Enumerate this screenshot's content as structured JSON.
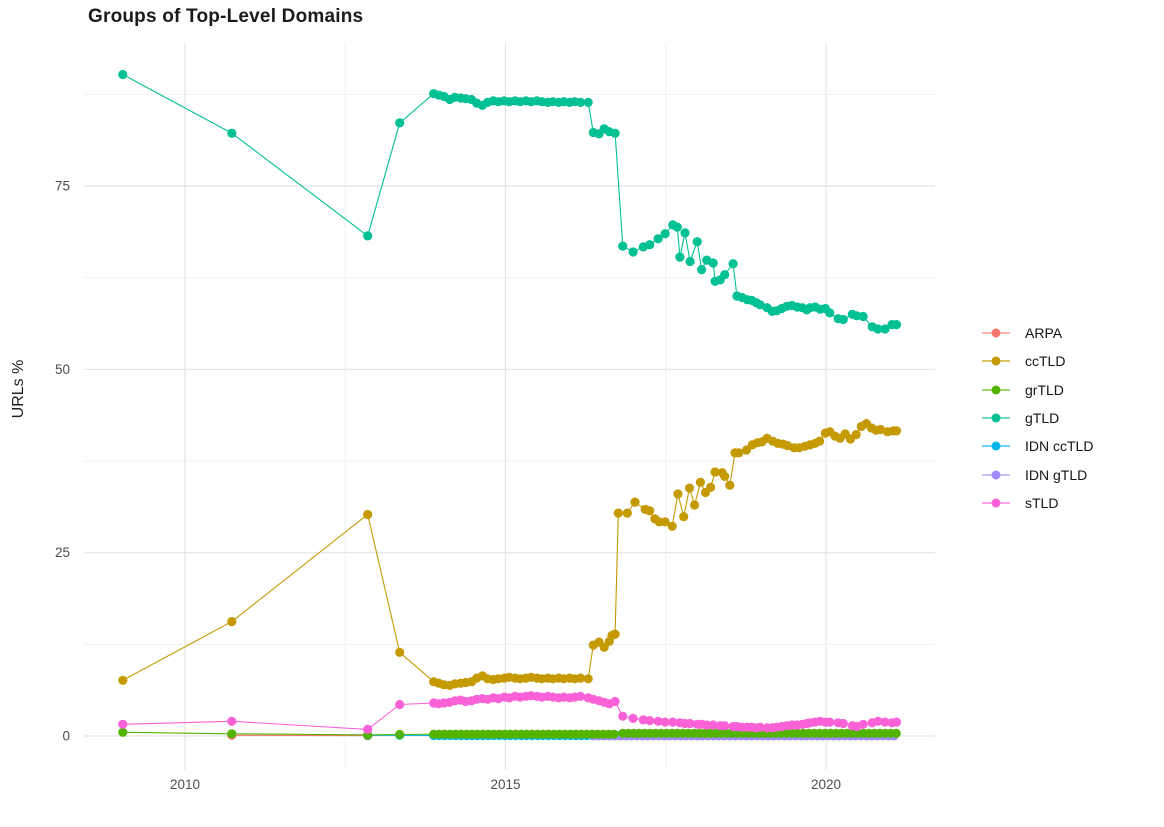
{
  "title": "Groups of Top-Level Domains",
  "chart_data": {
    "type": "line",
    "title": "Groups of Top-Level Domains",
    "xlabel": "",
    "ylabel": "URLs %",
    "x_ticks": [
      2010,
      2015,
      2020
    ],
    "x_minor_ticks": [
      2012.5,
      2017.5
    ],
    "y_ticks": [
      0,
      25,
      50,
      75
    ],
    "y_minor_ticks": [
      12.5,
      37.5,
      62.5,
      87.5
    ],
    "xlim": [
      2008.4,
      2021.7
    ],
    "ylim": [
      -4.6,
      94.6
    ],
    "grid": true,
    "legend_position": "right",
    "marker": "circle",
    "series": [
      {
        "name": "ARPA",
        "color": "#F8766D",
        "points": [
          [
            2010.73,
            0.1
          ],
          [
            2012.85,
            0.05
          ]
        ]
      },
      {
        "name": "ccTLD",
        "color": "#C49A00",
        "points": [
          [
            2009.03,
            7.6
          ],
          [
            2010.73,
            15.6
          ],
          [
            2012.85,
            30.2
          ],
          [
            2013.35,
            11.4
          ],
          [
            2013.88,
            7.4
          ],
          [
            2013.96,
            7.2
          ],
          [
            2014.04,
            7.0
          ],
          [
            2014.13,
            6.9
          ],
          [
            2014.21,
            7.1
          ],
          [
            2014.3,
            7.2
          ],
          [
            2014.38,
            7.3
          ],
          [
            2014.47,
            7.4
          ],
          [
            2014.55,
            7.9
          ],
          [
            2014.64,
            8.2
          ],
          [
            2014.72,
            7.8
          ],
          [
            2014.81,
            7.7
          ],
          [
            2014.89,
            7.8
          ],
          [
            2014.98,
            7.9
          ],
          [
            2015.06,
            8.0
          ],
          [
            2015.15,
            7.9
          ],
          [
            2015.23,
            7.8
          ],
          [
            2015.32,
            7.9
          ],
          [
            2015.4,
            8.0
          ],
          [
            2015.49,
            7.9
          ],
          [
            2015.57,
            7.8
          ],
          [
            2015.66,
            7.9
          ],
          [
            2015.74,
            7.8
          ],
          [
            2015.83,
            7.9
          ],
          [
            2015.91,
            7.8
          ],
          [
            2016.0,
            7.9
          ],
          [
            2016.08,
            7.8
          ],
          [
            2016.17,
            7.9
          ],
          [
            2016.29,
            7.8
          ],
          [
            2016.37,
            12.4
          ],
          [
            2016.46,
            12.8
          ],
          [
            2016.54,
            12.1
          ],
          [
            2016.62,
            12.9
          ],
          [
            2016.66,
            13.7
          ],
          [
            2016.71,
            13.9
          ],
          [
            2016.76,
            30.4
          ],
          [
            2016.9,
            30.4
          ],
          [
            2017.02,
            31.9
          ],
          [
            2017.18,
            30.9
          ],
          [
            2017.25,
            30.7
          ],
          [
            2017.33,
            29.6
          ],
          [
            2017.4,
            29.2
          ],
          [
            2017.49,
            29.2
          ],
          [
            2017.6,
            28.6
          ],
          [
            2017.69,
            33.0
          ],
          [
            2017.78,
            29.9
          ],
          [
            2017.87,
            33.8
          ],
          [
            2017.95,
            31.5
          ],
          [
            2018.04,
            34.6
          ],
          [
            2018.12,
            33.2
          ],
          [
            2018.2,
            33.9
          ],
          [
            2018.27,
            36.0
          ],
          [
            2018.38,
            35.9
          ],
          [
            2018.42,
            35.4
          ],
          [
            2018.5,
            34.2
          ],
          [
            2018.58,
            38.6
          ],
          [
            2018.64,
            38.6
          ],
          [
            2018.76,
            39.0
          ],
          [
            2018.85,
            39.7
          ],
          [
            2018.93,
            40.0
          ],
          [
            2019.0,
            40.1
          ],
          [
            2019.08,
            40.6
          ],
          [
            2019.17,
            40.2
          ],
          [
            2019.25,
            39.9
          ],
          [
            2019.33,
            39.8
          ],
          [
            2019.4,
            39.6
          ],
          [
            2019.5,
            39.3
          ],
          [
            2019.58,
            39.3
          ],
          [
            2019.67,
            39.5
          ],
          [
            2019.75,
            39.7
          ],
          [
            2019.83,
            39.9
          ],
          [
            2019.9,
            40.2
          ],
          [
            2019.99,
            41.3
          ],
          [
            2020.06,
            41.5
          ],
          [
            2020.14,
            40.9
          ],
          [
            2020.22,
            40.6
          ],
          [
            2020.3,
            41.2
          ],
          [
            2020.38,
            40.5
          ],
          [
            2020.47,
            41.1
          ],
          [
            2020.55,
            42.2
          ],
          [
            2020.63,
            42.6
          ],
          [
            2020.71,
            42.0
          ],
          [
            2020.78,
            41.7
          ],
          [
            2020.85,
            41.8
          ],
          [
            2020.96,
            41.5
          ],
          [
            2021.05,
            41.6
          ],
          [
            2021.1,
            41.6
          ]
        ]
      },
      {
        "name": "grTLD",
        "color": "#53B400",
        "points": [
          [
            2009.03,
            0.5
          ],
          [
            2010.73,
            0.3
          ],
          [
            2012.85,
            0.15
          ],
          [
            2013.35,
            0.2
          ]
        ],
        "runs": [
          {
            "from": 2013.88,
            "to": 2016.71,
            "step": 0.0853,
            "value": 0.25
          },
          {
            "from": 2016.83,
            "to": 2021.1,
            "step": 0.0853,
            "value": 0.35
          }
        ]
      },
      {
        "name": "gTLD",
        "color": "#00C094",
        "points": [
          [
            2009.03,
            90.2
          ],
          [
            2010.73,
            82.2
          ],
          [
            2012.85,
            68.2
          ],
          [
            2013.35,
            83.6
          ],
          [
            2013.88,
            87.6
          ],
          [
            2013.96,
            87.4
          ],
          [
            2014.04,
            87.2
          ],
          [
            2014.13,
            86.8
          ],
          [
            2014.21,
            87.1
          ],
          [
            2014.3,
            87.0
          ],
          [
            2014.38,
            86.9
          ],
          [
            2014.47,
            86.8
          ],
          [
            2014.55,
            86.3
          ],
          [
            2014.64,
            86.0
          ],
          [
            2014.72,
            86.4
          ],
          [
            2014.81,
            86.6
          ],
          [
            2014.89,
            86.5
          ],
          [
            2014.98,
            86.6
          ],
          [
            2015.06,
            86.5
          ],
          [
            2015.15,
            86.6
          ],
          [
            2015.23,
            86.5
          ],
          [
            2015.32,
            86.6
          ],
          [
            2015.4,
            86.5
          ],
          [
            2015.49,
            86.6
          ],
          [
            2015.57,
            86.5
          ],
          [
            2015.66,
            86.4
          ],
          [
            2015.74,
            86.5
          ],
          [
            2015.83,
            86.4
          ],
          [
            2015.91,
            86.5
          ],
          [
            2016.0,
            86.4
          ],
          [
            2016.08,
            86.5
          ],
          [
            2016.17,
            86.4
          ],
          [
            2016.29,
            86.4
          ],
          [
            2016.37,
            82.3
          ],
          [
            2016.46,
            82.1
          ],
          [
            2016.54,
            82.8
          ],
          [
            2016.62,
            82.4
          ],
          [
            2016.71,
            82.2
          ],
          [
            2016.83,
            66.8
          ],
          [
            2016.99,
            66.0
          ],
          [
            2017.15,
            66.7
          ],
          [
            2017.25,
            67.0
          ],
          [
            2017.38,
            67.8
          ],
          [
            2017.49,
            68.5
          ],
          [
            2017.61,
            69.7
          ],
          [
            2017.68,
            69.4
          ],
          [
            2017.72,
            65.3
          ],
          [
            2017.8,
            68.6
          ],
          [
            2017.88,
            64.7
          ],
          [
            2017.99,
            67.4
          ],
          [
            2018.06,
            63.6
          ],
          [
            2018.14,
            64.9
          ],
          [
            2018.24,
            64.5
          ],
          [
            2018.27,
            62.0
          ],
          [
            2018.35,
            62.2
          ],
          [
            2018.42,
            62.9
          ],
          [
            2018.55,
            64.4
          ],
          [
            2018.61,
            60.0
          ],
          [
            2018.69,
            59.8
          ],
          [
            2018.77,
            59.5
          ],
          [
            2018.84,
            59.4
          ],
          [
            2018.91,
            59.1
          ],
          [
            2018.97,
            58.8
          ],
          [
            2019.08,
            58.4
          ],
          [
            2019.16,
            57.9
          ],
          [
            2019.23,
            58.0
          ],
          [
            2019.31,
            58.3
          ],
          [
            2019.39,
            58.6
          ],
          [
            2019.47,
            58.7
          ],
          [
            2019.55,
            58.5
          ],
          [
            2019.63,
            58.4
          ],
          [
            2019.7,
            58.1
          ],
          [
            2019.75,
            58.4
          ],
          [
            2019.83,
            58.5
          ],
          [
            2019.91,
            58.2
          ],
          [
            2019.99,
            58.3
          ],
          [
            2020.06,
            57.7
          ],
          [
            2020.19,
            56.9
          ],
          [
            2020.27,
            56.8
          ],
          [
            2020.41,
            57.5
          ],
          [
            2020.48,
            57.3
          ],
          [
            2020.58,
            57.2
          ],
          [
            2020.72,
            55.8
          ],
          [
            2020.81,
            55.5
          ],
          [
            2020.92,
            55.5
          ],
          [
            2021.03,
            56.1
          ],
          [
            2021.1,
            56.1
          ]
        ]
      },
      {
        "name": "IDN ccTLD",
        "color": "#00B6EB",
        "points": [
          [
            2012.85,
            0.1
          ],
          [
            2013.35,
            0.1
          ]
        ],
        "runs": [
          {
            "from": 2013.88,
            "to": 2021.1,
            "step": 0.0853,
            "value": 0.07
          }
        ]
      },
      {
        "name": "IDN gTLD",
        "color": "#A58AFF",
        "points": [],
        "runs": [
          {
            "from": 2016.37,
            "to": 2021.1,
            "step": 0.0853,
            "value": 0.02
          }
        ]
      },
      {
        "name": "sTLD",
        "color": "#FB61D7",
        "points": [
          [
            2009.03,
            1.6
          ],
          [
            2010.73,
            2.0
          ],
          [
            2012.85,
            0.9
          ],
          [
            2013.35,
            4.3
          ],
          [
            2013.88,
            4.5
          ],
          [
            2013.96,
            4.4
          ],
          [
            2014.04,
            4.5
          ],
          [
            2014.13,
            4.6
          ],
          [
            2014.21,
            4.8
          ],
          [
            2014.3,
            4.9
          ],
          [
            2014.38,
            4.7
          ],
          [
            2014.47,
            4.8
          ],
          [
            2014.55,
            5.0
          ],
          [
            2014.64,
            5.1
          ],
          [
            2014.72,
            5.0
          ],
          [
            2014.81,
            5.2
          ],
          [
            2014.89,
            5.1
          ],
          [
            2014.98,
            5.3
          ],
          [
            2015.06,
            5.2
          ],
          [
            2015.15,
            5.4
          ],
          [
            2015.23,
            5.3
          ],
          [
            2015.32,
            5.4
          ],
          [
            2015.4,
            5.5
          ],
          [
            2015.49,
            5.4
          ],
          [
            2015.57,
            5.3
          ],
          [
            2015.66,
            5.4
          ],
          [
            2015.74,
            5.3
          ],
          [
            2015.83,
            5.2
          ],
          [
            2015.91,
            5.3
          ],
          [
            2016.0,
            5.2
          ],
          [
            2016.08,
            5.3
          ],
          [
            2016.17,
            5.4
          ],
          [
            2016.29,
            5.2
          ],
          [
            2016.37,
            5.0
          ],
          [
            2016.46,
            4.8
          ],
          [
            2016.54,
            4.6
          ],
          [
            2016.62,
            4.4
          ],
          [
            2016.71,
            4.7
          ],
          [
            2016.83,
            2.7
          ],
          [
            2016.99,
            2.4
          ],
          [
            2017.15,
            2.2
          ],
          [
            2017.25,
            2.1
          ],
          [
            2017.38,
            2.0
          ],
          [
            2017.49,
            1.9
          ],
          [
            2017.61,
            1.9
          ],
          [
            2017.72,
            1.8
          ],
          [
            2017.8,
            1.7
          ],
          [
            2017.88,
            1.7
          ],
          [
            2017.99,
            1.6
          ],
          [
            2018.06,
            1.6
          ],
          [
            2018.14,
            1.5
          ],
          [
            2018.24,
            1.5
          ],
          [
            2018.35,
            1.4
          ],
          [
            2018.42,
            1.4
          ],
          [
            2018.55,
            1.3
          ],
          [
            2018.61,
            1.3
          ],
          [
            2018.69,
            1.2
          ],
          [
            2018.77,
            1.2
          ],
          [
            2018.84,
            1.2
          ],
          [
            2018.91,
            1.1
          ],
          [
            2018.97,
            1.2
          ],
          [
            2019.08,
            1.1
          ],
          [
            2019.16,
            1.1
          ],
          [
            2019.23,
            1.2
          ],
          [
            2019.31,
            1.3
          ],
          [
            2019.39,
            1.4
          ],
          [
            2019.47,
            1.5
          ],
          [
            2019.55,
            1.5
          ],
          [
            2019.63,
            1.6
          ],
          [
            2019.7,
            1.7
          ],
          [
            2019.75,
            1.8
          ],
          [
            2019.83,
            1.9
          ],
          [
            2019.91,
            2.0
          ],
          [
            2019.99,
            1.9
          ],
          [
            2020.06,
            1.9
          ],
          [
            2020.19,
            1.8
          ],
          [
            2020.27,
            1.7
          ],
          [
            2020.41,
            1.4
          ],
          [
            2020.48,
            1.3
          ],
          [
            2020.58,
            1.6
          ],
          [
            2020.72,
            1.8
          ],
          [
            2020.81,
            2.0
          ],
          [
            2020.92,
            1.9
          ],
          [
            2021.03,
            1.8
          ],
          [
            2021.1,
            1.9
          ]
        ]
      }
    ]
  }
}
